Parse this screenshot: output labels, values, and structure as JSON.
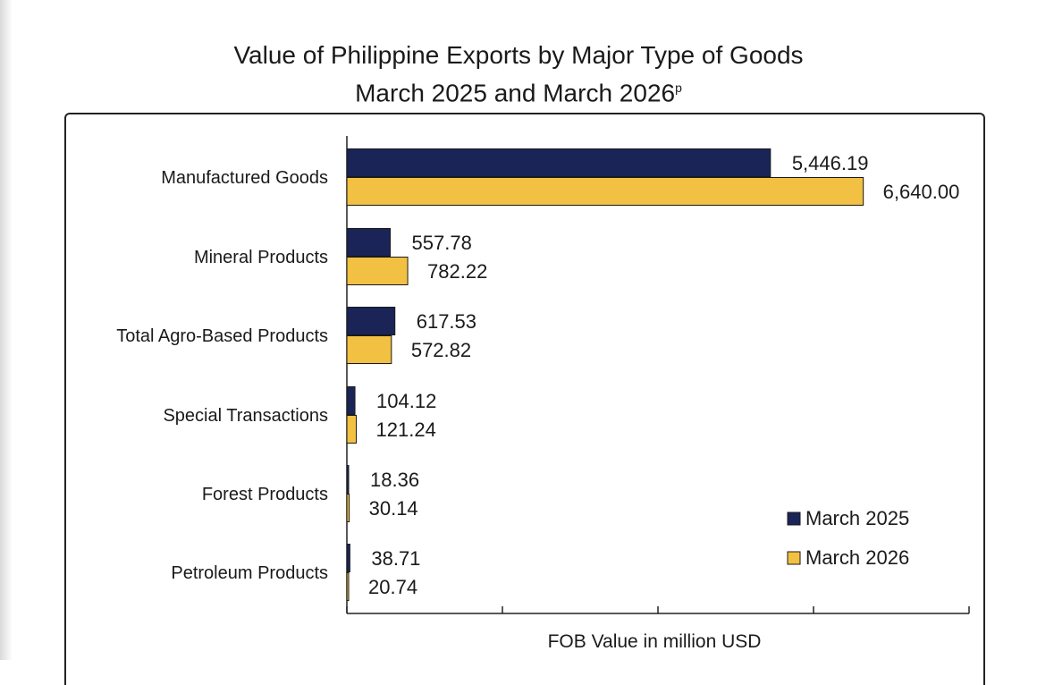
{
  "chart_data": {
    "type": "bar",
    "orientation": "horizontal",
    "title": "Value of Philippine Exports by Major Type of Goods",
    "subtitle": "March 2025 and March 2026",
    "subtitle_suffix": "p",
    "xlabel": "FOB Value in million USD",
    "ylabel": "",
    "xlim": [
      0,
      8000
    ],
    "x_tick_step": 2000,
    "grid": false,
    "legend_position": "bottom-right",
    "categories": [
      "Manufactured Goods",
      "Mineral Products",
      "Total Agro-Based Products",
      "Special Transactions",
      "Forest Products",
      "Petroleum Products"
    ],
    "series": [
      {
        "name": "March 2025",
        "color": "#1a2456",
        "values": [
          5446.19,
          557.78,
          617.53,
          104.12,
          18.36,
          38.71
        ],
        "labels": [
          "5,446.19",
          "557.78",
          "617.53",
          "104.12",
          "18.36",
          "38.71"
        ]
      },
      {
        "name": "March 2026",
        "color": "#f2c042",
        "values": [
          6640.0,
          782.22,
          572.82,
          121.24,
          30.14,
          20.74
        ],
        "labels": [
          "6,640.00",
          "782.22",
          "572.82",
          "121.24",
          "30.14",
          "20.74"
        ]
      }
    ]
  }
}
